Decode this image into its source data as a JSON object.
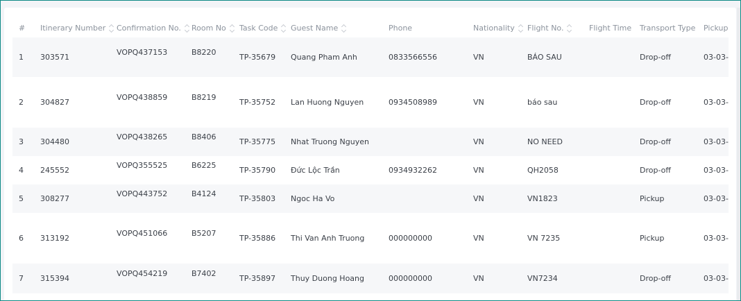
{
  "table": {
    "columns": [
      {
        "label": "#",
        "sortable": false
      },
      {
        "label": "Itinerary Number",
        "sortable": true
      },
      {
        "label": "Confirmation No.",
        "sortable": true
      },
      {
        "label": "Room No",
        "sortable": true
      },
      {
        "label": "Task Code",
        "sortable": true
      },
      {
        "label": "Guest Name",
        "sortable": true
      },
      {
        "label": "Phone",
        "sortable": false
      },
      {
        "label": "Nationality",
        "sortable": true
      },
      {
        "label": "Flight No.",
        "sortable": true
      },
      {
        "label": "Flight Time",
        "sortable": false
      },
      {
        "label": "Transport Type",
        "sortable": false
      },
      {
        "label": "Pickup",
        "sortable": false
      }
    ],
    "rows": [
      [
        "1",
        "303571",
        "VOPQ437153",
        "B8220",
        "TP-35679",
        "Quang Pham Anh",
        "0833566556",
        "VN",
        "BÁO SAU",
        "",
        "Drop-off",
        "03-03-"
      ],
      [
        "2",
        "304827",
        "VOPQ438859",
        "B8219",
        "TP-35752",
        "Lan Huong Nguyen",
        "0934508989",
        "VN",
        "báo sau",
        "",
        "Drop-off",
        "03-03-"
      ],
      [
        "3",
        "304480",
        "VOPQ438265",
        "B8406",
        "TP-35775",
        "Nhat Truong Nguyen",
        "",
        "VN",
        "NO NEED",
        "",
        "Drop-off",
        "03-03-"
      ],
      [
        "4",
        "245552",
        "VOPQ355525",
        "B6225",
        "TP-35790",
        "Đức Lộc Trần",
        "0934932262",
        "VN",
        "QH2058",
        "",
        "Drop-off",
        "03-03-"
      ],
      [
        "5",
        "308277",
        "VOPQ443752",
        "B4124",
        "TP-35803",
        "Ngoc Ha Vo",
        "",
        "VN",
        "VN1823",
        "",
        "Pickup",
        "03-03-"
      ],
      [
        "6",
        "313192",
        "VOPQ451066",
        "B5207",
        "TP-35886",
        "Thi Van Anh Truong",
        "000000000",
        "VN",
        "VN 7235",
        "",
        "Pickup",
        "03-03-"
      ],
      [
        "7",
        "315394",
        "VOPQ454219",
        "B7402",
        "TP-35897",
        "Thuy Duong Hoang",
        "000000000",
        "VN",
        "VN7234",
        "",
        "Drop-off",
        "03-03-"
      ]
    ]
  }
}
